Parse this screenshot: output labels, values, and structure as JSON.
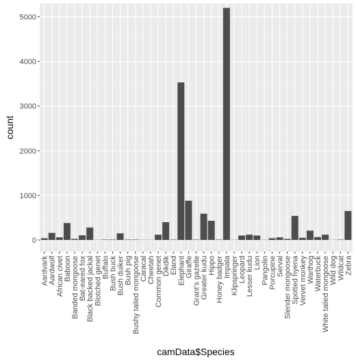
{
  "chart_data": {
    "type": "bar",
    "xlabel": "camData$Species",
    "ylabel": "count",
    "ylim": [
      -260,
      5300
    ],
    "yticks": [
      0,
      1000,
      2000,
      3000,
      4000,
      5000
    ],
    "grid": true,
    "colors": {
      "bar": "#4d4d4d",
      "panel": "#ebebeb",
      "grid_major": "#ffffff",
      "grid_minor": "#f4f4f4"
    },
    "categories": [
      "Aardvark",
      "Aardwolf",
      "African civet",
      "Baboon",
      "Banded mongoose",
      "Bat-eared fox",
      "Black backed jackal",
      "Blotched genet",
      "Buffalo",
      "Bush buck",
      "Bush duiker",
      "Bush pig",
      "Bushy tailed mongoose",
      "Caracal",
      "Cheetah",
      "Common genet",
      "Dikdik",
      "Eland",
      "Elephant",
      "Giraffe",
      "Grant's gazelle",
      "Greater kudu",
      "Hippo",
      "Honey badger",
      "Impala",
      "Klipspringer",
      "Leopard",
      "Lesser kudu",
      "Lion",
      "Pangolin",
      "Porcupine",
      "Serval",
      "Slender mongoose",
      "Spotted hyena",
      "Vervet monkey",
      "Warthog",
      "Waterbuck",
      "White tailed mongoose",
      "Wild dog",
      "Wildcat",
      "Zebra"
    ],
    "values": [
      40,
      160,
      60,
      380,
      25,
      105,
      280,
      5,
      10,
      10,
      150,
      10,
      10,
      5,
      5,
      120,
      400,
      10,
      3530,
      880,
      10,
      590,
      430,
      10,
      5200,
      5,
      100,
      120,
      100,
      5,
      40,
      60,
      25,
      540,
      50,
      210,
      65,
      120,
      5,
      10,
      650
    ]
  }
}
